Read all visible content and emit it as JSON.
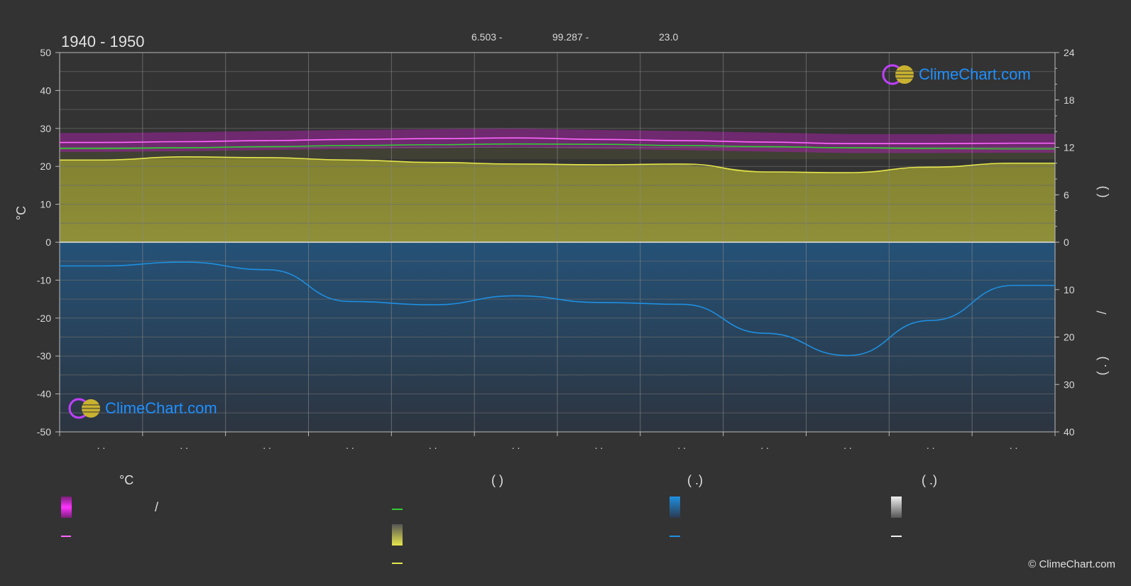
{
  "header": {
    "title": "1940 - 1950",
    "coord_lat": "6.503 -",
    "coord_lon": "99.287 -",
    "elevation": "23.0"
  },
  "logo": {
    "text": "ClimeChart.com",
    "color": "#1e90ff"
  },
  "copyright": "© ClimeChart.com",
  "legend": {
    "col1_head": "°C",
    "col2_head": "(          )",
    "col3_head": "(   .)",
    "col4_head": "(   .)",
    "slash": "/"
  },
  "chart_data": {
    "type": "area",
    "months": [
      ". .",
      ". .",
      ". .",
      ". .",
      ". .",
      ". .",
      ". .",
      ". .",
      ". .",
      ". .",
      ". .",
      ". ."
    ],
    "left_axis": {
      "label": "°C",
      "min": -50,
      "max": 50,
      "ticks": [
        50,
        40,
        30,
        20,
        10,
        0,
        -10,
        -20,
        -30,
        -40,
        -50
      ]
    },
    "right_axis_top": {
      "ticks": [
        24,
        18,
        12,
        6,
        0
      ],
      "unit": "h"
    },
    "right_axis_bottom": {
      "ticks": [
        10,
        20,
        30,
        40
      ],
      "unit": "mm"
    },
    "right_axis_side_labels": [
      "(    )",
      "/",
      "(  .  )"
    ],
    "series": [
      {
        "kind": "temp_max_mean",
        "color": "#ff66ff",
        "values": [
          26.3,
          26.5,
          26.8,
          27.1,
          27.3,
          27.5,
          27.1,
          26.8,
          26.4,
          26.0,
          26.0,
          26.1
        ]
      },
      {
        "kind": "temp_mean",
        "color": "#33cc33",
        "values": [
          24.7,
          24.9,
          25.2,
          25.5,
          25.7,
          25.9,
          25.8,
          25.5,
          25.2,
          24.9,
          24.7,
          24.6
        ]
      },
      {
        "kind": "sunshine_hours",
        "color": "#e6e64d",
        "values": [
          10.4,
          10.8,
          10.7,
          10.4,
          10.1,
          9.9,
          9.8,
          9.9,
          8.9,
          8.8,
          9.5,
          10.0
        ]
      },
      {
        "kind": "precipitation_mm",
        "color": "#1f8fe0",
        "values": [
          5.0,
          4.2,
          5.8,
          12.5,
          13.2,
          11.3,
          12.7,
          13.1,
          19.2,
          23.9,
          16.5,
          9.1
        ]
      }
    ]
  }
}
